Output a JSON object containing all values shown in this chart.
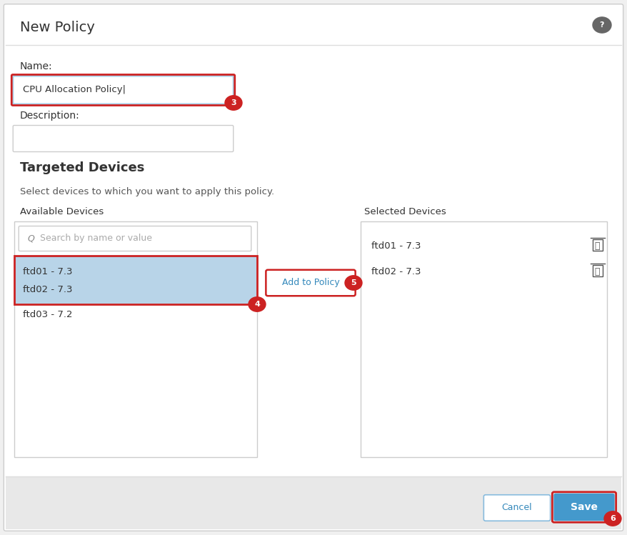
{
  "title": "New Policy",
  "outer_bg": "#f0f0f0",
  "dialog_bg": "#ffffff",
  "footer_bg": "#e8e8e8",
  "border_color": "#cccccc",
  "name_label": "Name:",
  "name_value": "CPU Allocation Policy",
  "name_cursor": "|",
  "name_box_inner_border": "#a8d0e8",
  "name_box_outer_border": "#cc2222",
  "desc_label": "Description:",
  "targeted_label": "Targeted Devices",
  "select_hint": "Select devices to which you want to apply this policy.",
  "avail_label": "Available Devices",
  "selected_label": "Selected Devices",
  "search_placeholder": "Search by name or value",
  "available_devices": [
    "ftd01 - 7.3",
    "ftd02 - 7.3",
    "ftd03 - 7.2"
  ],
  "selected_devices": [
    "ftd01 - 7.3",
    "ftd02 - 7.3"
  ],
  "highlight_color": "#b8d4e8",
  "highlight_border": "#cc2222",
  "add_button_label": "Add to Policy",
  "add_button_border": "#cc2222",
  "add_button_text_color": "#3388bb",
  "cancel_button_label": "Cancel",
  "cancel_button_border": "#88bbdd",
  "save_button_label": "Save",
  "save_button_bg": "#4499cc",
  "save_button_text": "#ffffff",
  "cancel_button_text": "#3388bb",
  "cancel_button_bg": "#ffffff",
  "red_circle_color": "#cc2222",
  "red_circle_text": "#ffffff",
  "help_circle_color": "#666666",
  "text_color": "#333333",
  "hint_color": "#555555",
  "header_line_color": "#dddddd",
  "footer_line_color": "#dddddd",
  "search_icon_color": "#888888",
  "trash_color": "#555555"
}
